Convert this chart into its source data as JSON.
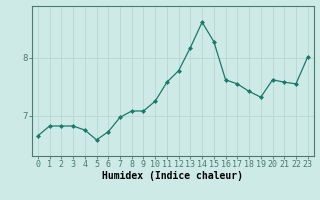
{
  "x": [
    0,
    1,
    2,
    3,
    4,
    5,
    6,
    7,
    8,
    9,
    10,
    11,
    12,
    13,
    14,
    15,
    16,
    17,
    18,
    19,
    20,
    21,
    22,
    23
  ],
  "y": [
    6.65,
    6.82,
    6.82,
    6.82,
    6.75,
    6.58,
    6.72,
    6.97,
    7.08,
    7.08,
    7.25,
    7.58,
    7.78,
    8.18,
    8.62,
    8.28,
    7.62,
    7.55,
    7.42,
    7.32,
    7.62,
    7.58,
    7.55,
    8.02
  ],
  "line_color": "#1a7a6a",
  "marker_color": "#1a7a6a",
  "bg_color": "#cdeae6",
  "grid_color": "#b8d8d4",
  "xlabel": "Humidex (Indice chaleur)",
  "yticks": [
    7,
    8
  ],
  "ylim": [
    6.3,
    8.9
  ],
  "xlim": [
    -0.5,
    23.5
  ],
  "xlabel_fontsize": 7,
  "tick_fontsize": 6,
  "spine_color": "#4a7a70"
}
